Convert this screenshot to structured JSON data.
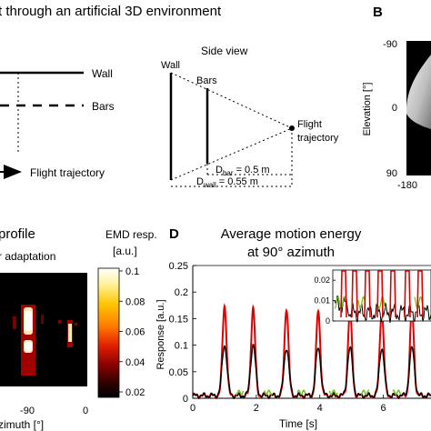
{
  "panel_a": {
    "title_fragment": "t through an artificial 3D environment",
    "top_view": {
      "wall_label": "Wall",
      "bars_label": "Bars",
      "trajectory_label": "Flight trajectory"
    },
    "side_view": {
      "title": "Side view",
      "wall_label": "Wall",
      "bars_label": "Bars",
      "trajectory_label_1": "Flight",
      "trajectory_label_2": "trajectory",
      "d_bar_label": "D",
      "d_bar_sub": "bar",
      "d_bar_value": " = 0.5 m",
      "d_wall_label": "D",
      "d_wall_sub": "wall",
      "d_wall_value": " = 0.55 m"
    }
  },
  "panel_b": {
    "letter": "B",
    "ylabel": "Elevation [°]",
    "yticks": [
      "-90",
      "0",
      "90"
    ],
    "xtick_first": "-180"
  },
  "panel_c": {
    "title_fragment_1": "profile",
    "title_fragment_2": "r adaptation",
    "xlabel": "zimuth [°]",
    "xticks": [
      "-90",
      "0"
    ],
    "colorbar": {
      "label_1": "EMD resp.",
      "label_2": "[a.u.]",
      "ticks": [
        "0.1",
        "0.08",
        "0.06",
        "0.04",
        "0.02"
      ],
      "colors": [
        "#ffffff",
        "#fff2a0",
        "#ffc400",
        "#ff7a00",
        "#e02000",
        "#8a0000",
        "#2a0000",
        "#000000"
      ]
    }
  },
  "panel_d": {
    "letter": "D",
    "title_1": "Average motion energy",
    "title_2": "at 90° azimuth",
    "colors": {
      "adapt": "#e00000",
      "pre": "#000000",
      "green": "#6cc417"
    }
  },
  "chart_data": {
    "type": "line",
    "xlabel": "Time [s]",
    "ylabel": "Response [a.u.]",
    "xlim": [
      0,
      7.5
    ],
    "ylim": [
      0,
      0.25
    ],
    "xticks": [
      "0",
      "2",
      "4",
      "6"
    ],
    "yticks": [
      "0",
      "0.05",
      "0.1",
      "0.15",
      "0.2",
      "0.25"
    ],
    "peak_times": [
      1.0,
      1.9,
      2.95,
      3.95,
      4.95,
      5.95,
      6.9
    ],
    "peak_values_red": [
      0.175,
      0.17,
      0.17,
      0.165,
      0.165,
      0.165,
      0.165
    ],
    "peak_values_black": [
      0.1,
      0.1,
      0.095,
      0.095,
      0.095,
      0.095,
      0.095
    ],
    "baseline": 0.005,
    "inset": {
      "yticks": [
        "0",
        "0.01",
        "0.02"
      ],
      "ylim": [
        0,
        0.025
      ]
    }
  }
}
